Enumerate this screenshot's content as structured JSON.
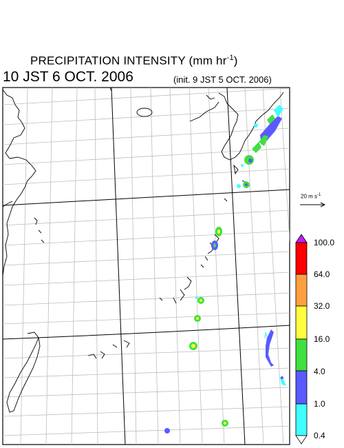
{
  "header": {
    "title_main": "PRECIPITATION INTENSITY (mm hr",
    "title_exp": "-1",
    "title_close": ")",
    "valid_time": "10 JST 6 OCT. 2006",
    "init_time": "(init. 9 JST 5 OCT. 2006)"
  },
  "vector_key": {
    "label": "20 m s",
    "exp": "-1"
  },
  "colorbar": {
    "levels": [
      "100.0",
      "64.0",
      "32.0",
      "16.0",
      "4.0",
      "1.0",
      "0.4"
    ],
    "colors": [
      "#ff0000",
      "#ffa040",
      "#ffff40",
      "#40e040",
      "#5a5aff",
      "#40ffff"
    ],
    "overflow_color": "#c020ff"
  }
}
